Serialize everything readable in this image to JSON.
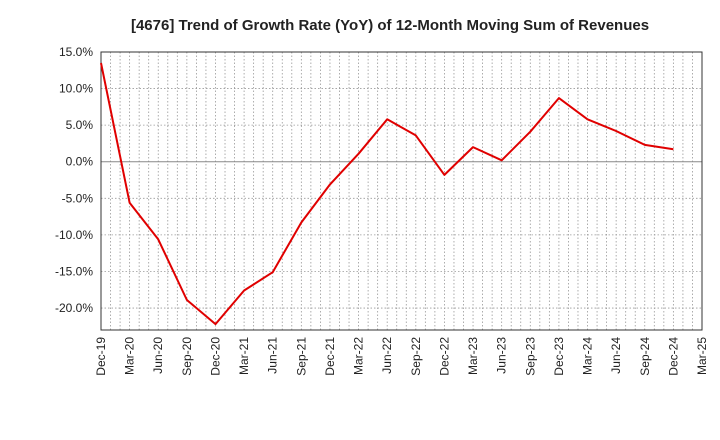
{
  "chart_data": {
    "type": "line",
    "title": "[4676]  Trend of Growth Rate (YoY) of 12-Month Moving Sum of Revenues",
    "xlabel": "",
    "ylabel": "",
    "ylim": [
      -23,
      15
    ],
    "y_ticks": [
      "15.0%",
      "10.0%",
      "5.0%",
      "0.0%",
      "-5.0%",
      "-10.0%",
      "-15.0%",
      "-20.0%"
    ],
    "y_tick_values": [
      15,
      10,
      5,
      0,
      -5,
      -10,
      -15,
      -20
    ],
    "x_tick_labels": [
      "Dec-19",
      "Mar-20",
      "Jun-20",
      "Sep-20",
      "Dec-20",
      "Mar-21",
      "Jun-21",
      "Sep-21",
      "Dec-21",
      "Mar-22",
      "Jun-22",
      "Sep-22",
      "Dec-22",
      "Mar-23",
      "Jun-23",
      "Sep-23",
      "Dec-23",
      "Mar-24",
      "Jun-24",
      "Sep-24",
      "Dec-24",
      "Mar-25"
    ],
    "grid": true,
    "series": [
      {
        "color": "#e00000",
        "x": [
          "Dec-19",
          "Mar-20",
          "Jun-20",
          "Sep-20",
          "Dec-20",
          "Mar-21",
          "Jun-21",
          "Sep-21",
          "Dec-21",
          "Mar-22",
          "Jun-22",
          "Sep-22",
          "Dec-22",
          "Mar-23",
          "Jun-23",
          "Sep-23",
          "Dec-23",
          "Mar-24",
          "Jun-24",
          "Sep-24",
          "Dec-24"
        ],
        "values": [
          13.5,
          -5.6,
          -10.6,
          -18.9,
          -22.2,
          -17.6,
          -15.1,
          -8.3,
          -3.1,
          1.1,
          5.8,
          3.6,
          -1.8,
          2.0,
          0.2,
          4.1,
          8.7,
          5.8,
          4.2,
          2.3,
          1.7
        ]
      }
    ]
  }
}
